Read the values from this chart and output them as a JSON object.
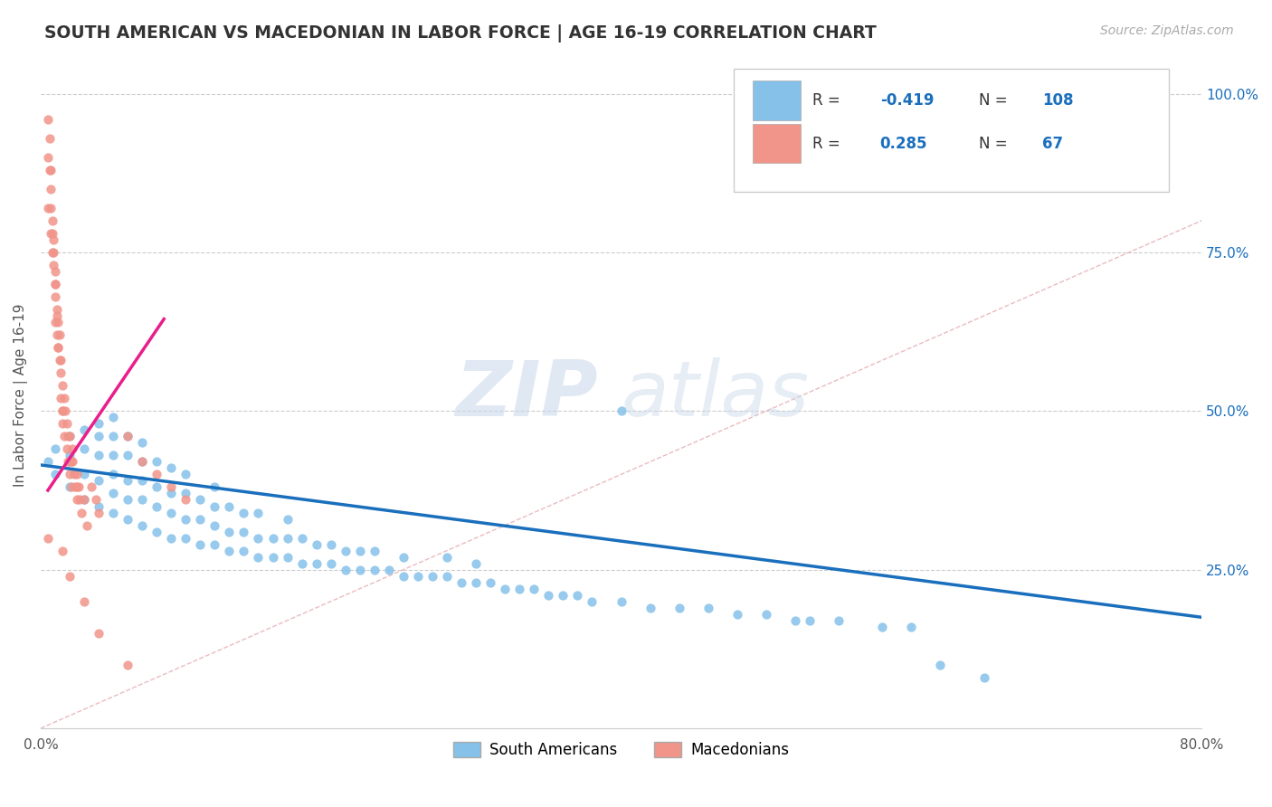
{
  "title": "SOUTH AMERICAN VS MACEDONIAN IN LABOR FORCE | AGE 16-19 CORRELATION CHART",
  "source_text": "Source: ZipAtlas.com",
  "ylabel": "In Labor Force | Age 16-19",
  "ylabel_right_ticks": [
    "100.0%",
    "75.0%",
    "50.0%",
    "25.0%"
  ],
  "ylabel_right_tick_vals": [
    1.0,
    0.75,
    0.5,
    0.25
  ],
  "xmin": 0.0,
  "xmax": 0.8,
  "ymin": 0.0,
  "ymax": 1.05,
  "watermark": "ZIPatlas",
  "legend": {
    "blue_label": "South Americans",
    "pink_label": "Macedonians",
    "blue_R": "-0.419",
    "blue_N": "108",
    "pink_R": "0.285",
    "pink_N": "67"
  },
  "blue_color": "#85c1e9",
  "pink_color": "#f1948a",
  "blue_line_color": "#1a6fbd",
  "pink_line_color": "#e91e8c",
  "diagonal_color": "#e8b4b8",
  "blue_scatter_x": [
    0.005,
    0.01,
    0.01,
    0.02,
    0.02,
    0.02,
    0.03,
    0.03,
    0.03,
    0.03,
    0.04,
    0.04,
    0.04,
    0.04,
    0.04,
    0.05,
    0.05,
    0.05,
    0.05,
    0.05,
    0.05,
    0.06,
    0.06,
    0.06,
    0.06,
    0.06,
    0.07,
    0.07,
    0.07,
    0.07,
    0.07,
    0.08,
    0.08,
    0.08,
    0.08,
    0.09,
    0.09,
    0.09,
    0.09,
    0.1,
    0.1,
    0.1,
    0.1,
    0.11,
    0.11,
    0.11,
    0.12,
    0.12,
    0.12,
    0.12,
    0.13,
    0.13,
    0.13,
    0.14,
    0.14,
    0.14,
    0.15,
    0.15,
    0.15,
    0.16,
    0.16,
    0.17,
    0.17,
    0.17,
    0.18,
    0.18,
    0.19,
    0.19,
    0.2,
    0.2,
    0.21,
    0.21,
    0.22,
    0.22,
    0.23,
    0.23,
    0.24,
    0.25,
    0.25,
    0.26,
    0.27,
    0.28,
    0.28,
    0.29,
    0.3,
    0.3,
    0.31,
    0.32,
    0.33,
    0.34,
    0.35,
    0.36,
    0.37,
    0.38,
    0.4,
    0.4,
    0.42,
    0.44,
    0.46,
    0.48,
    0.5,
    0.52,
    0.53,
    0.55,
    0.58,
    0.6,
    0.62,
    0.65
  ],
  "blue_scatter_y": [
    0.42,
    0.4,
    0.44,
    0.38,
    0.43,
    0.46,
    0.36,
    0.4,
    0.44,
    0.47,
    0.35,
    0.39,
    0.43,
    0.46,
    0.48,
    0.34,
    0.37,
    0.4,
    0.43,
    0.46,
    0.49,
    0.33,
    0.36,
    0.39,
    0.43,
    0.46,
    0.32,
    0.36,
    0.39,
    0.42,
    0.45,
    0.31,
    0.35,
    0.38,
    0.42,
    0.3,
    0.34,
    0.37,
    0.41,
    0.3,
    0.33,
    0.37,
    0.4,
    0.29,
    0.33,
    0.36,
    0.29,
    0.32,
    0.35,
    0.38,
    0.28,
    0.31,
    0.35,
    0.28,
    0.31,
    0.34,
    0.27,
    0.3,
    0.34,
    0.27,
    0.3,
    0.27,
    0.3,
    0.33,
    0.26,
    0.3,
    0.26,
    0.29,
    0.26,
    0.29,
    0.25,
    0.28,
    0.25,
    0.28,
    0.25,
    0.28,
    0.25,
    0.24,
    0.27,
    0.24,
    0.24,
    0.24,
    0.27,
    0.23,
    0.23,
    0.26,
    0.23,
    0.22,
    0.22,
    0.22,
    0.21,
    0.21,
    0.21,
    0.2,
    0.2,
    0.5,
    0.19,
    0.19,
    0.19,
    0.18,
    0.18,
    0.17,
    0.17,
    0.17,
    0.16,
    0.16,
    0.1,
    0.08
  ],
  "pink_scatter_x": [
    0.005,
    0.005,
    0.007,
    0.007,
    0.007,
    0.008,
    0.008,
    0.009,
    0.009,
    0.01,
    0.01,
    0.01,
    0.01,
    0.011,
    0.011,
    0.012,
    0.012,
    0.013,
    0.013,
    0.014,
    0.014,
    0.014,
    0.015,
    0.015,
    0.015,
    0.016,
    0.016,
    0.017,
    0.018,
    0.018,
    0.019,
    0.019,
    0.02,
    0.02,
    0.021,
    0.021,
    0.022,
    0.022,
    0.023,
    0.024,
    0.025,
    0.025,
    0.026,
    0.027,
    0.028,
    0.03,
    0.032,
    0.035,
    0.038,
    0.04,
    0.005,
    0.006,
    0.006,
    0.007,
    0.008,
    0.009,
    0.01,
    0.011,
    0.012,
    0.015,
    0.02,
    0.025,
    0.06,
    0.07,
    0.08,
    0.09,
    0.1
  ],
  "pink_scatter_y": [
    0.82,
    0.9,
    0.85,
    0.88,
    0.78,
    0.8,
    0.75,
    0.73,
    0.77,
    0.72,
    0.68,
    0.64,
    0.7,
    0.66,
    0.62,
    0.64,
    0.6,
    0.58,
    0.62,
    0.56,
    0.52,
    0.58,
    0.54,
    0.5,
    0.48,
    0.52,
    0.46,
    0.5,
    0.48,
    0.44,
    0.46,
    0.42,
    0.46,
    0.4,
    0.42,
    0.38,
    0.42,
    0.44,
    0.4,
    0.38,
    0.4,
    0.36,
    0.38,
    0.36,
    0.34,
    0.36,
    0.32,
    0.38,
    0.36,
    0.34,
    0.96,
    0.93,
    0.88,
    0.82,
    0.78,
    0.75,
    0.7,
    0.65,
    0.6,
    0.5,
    0.42,
    0.38,
    0.46,
    0.42,
    0.4,
    0.38,
    0.36
  ],
  "pink_low_y": [
    0.3,
    0.28,
    0.24,
    0.2,
    0.15,
    0.1
  ],
  "pink_low_x": [
    0.005,
    0.015,
    0.02,
    0.03,
    0.04,
    0.06
  ],
  "blue_trend_x": [
    0.0,
    0.8
  ],
  "blue_trend_y": [
    0.415,
    0.175
  ],
  "pink_trend_x": [
    0.005,
    0.085
  ],
  "pink_trend_y": [
    0.375,
    0.645
  ]
}
